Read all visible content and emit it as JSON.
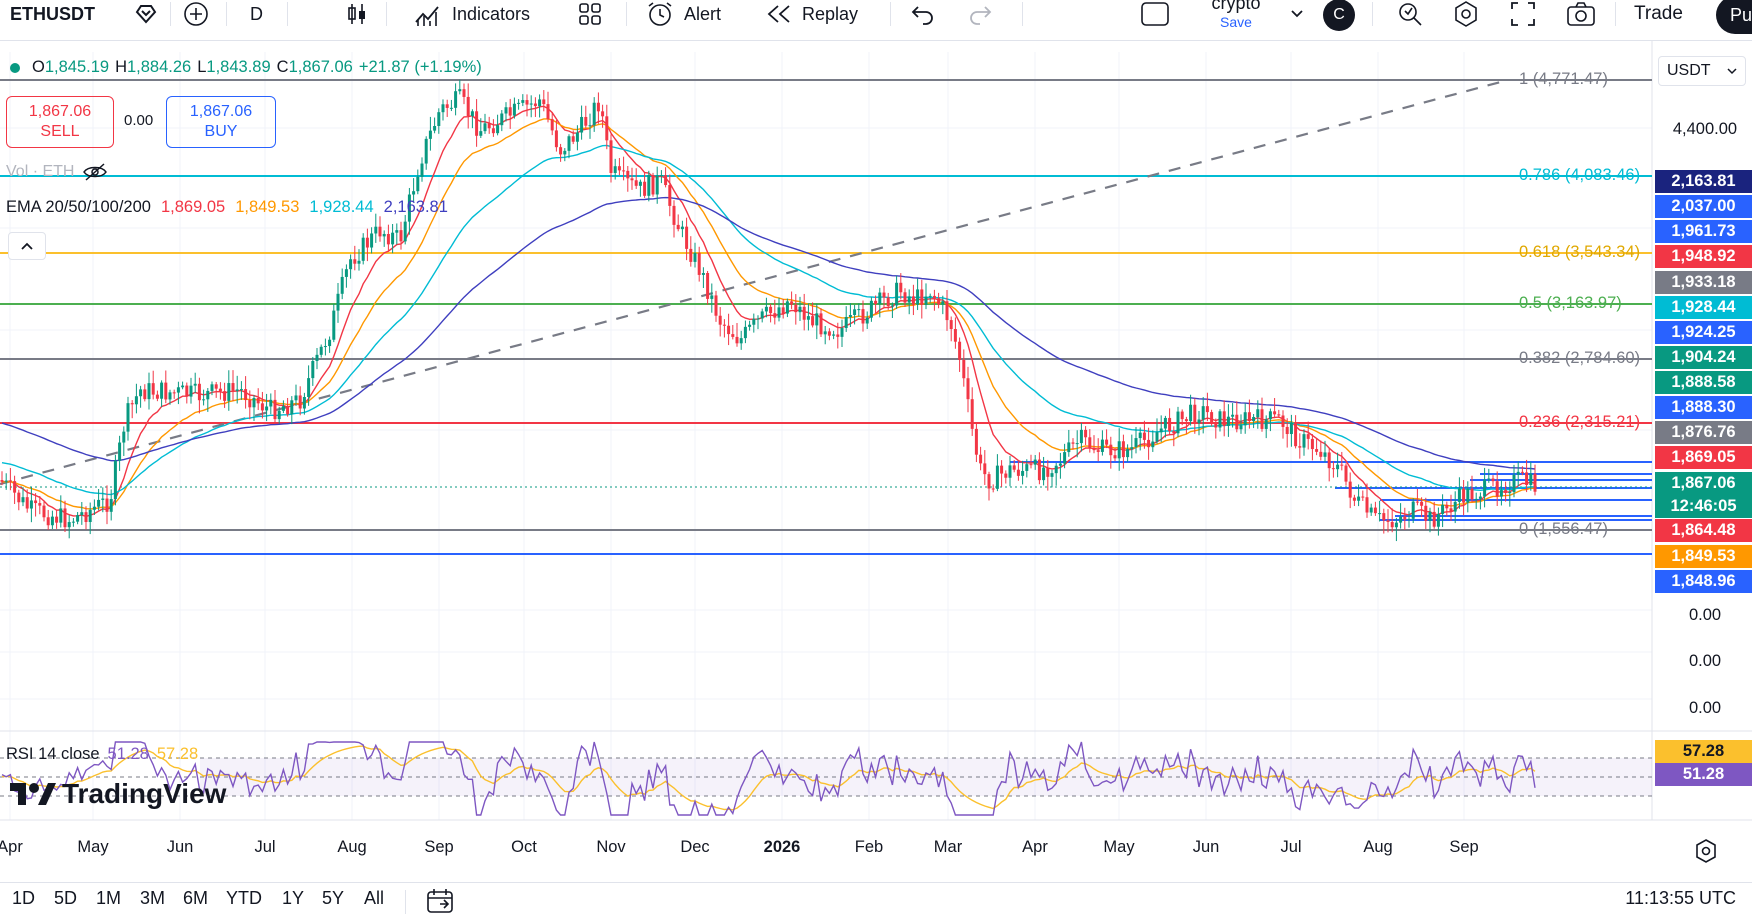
{
  "toolbar": {
    "symbol": "ETHUSDT",
    "interval": "D",
    "indicators_label": "Indicators",
    "alert_label": "Alert",
    "replay_label": "Replay",
    "layout_name": "crypto",
    "layout_sub": "Save",
    "avatar_letter": "C",
    "trade_label": "Trade",
    "publish_label": "Pu"
  },
  "legend": {
    "open_k": "O",
    "open_v": "1,845.19",
    "high_k": "H",
    "high_v": "1,884.26",
    "low_k": "L",
    "low_v": "1,843.89",
    "close_k": "C",
    "close_v": "1,867.06",
    "change": "+21.87 (+1.19%)",
    "sell_price": "1,867.06",
    "sell_label": "SELL",
    "spread": "0.00",
    "buy_price": "1,867.06",
    "buy_label": "BUY",
    "vol_label": "Vol · ETH",
    "ema_label": "EMA 20/50/100/200",
    "ema20": "1,869.05",
    "ema50": "1,849.53",
    "ema100": "1,928.44",
    "ema200": "2,163.81",
    "rsi_label": "RSI 14 close",
    "rsi_value": "51.28",
    "rsi_ma": "57.28"
  },
  "logo_text": "TradingView",
  "price_axis": {
    "currency": "USDT",
    "tick_4400": "4,400.00",
    "zero_1": "0.00",
    "zero_2": "0.00",
    "zero_3": "0.00"
  },
  "price_labels": [
    {
      "text": "2,163.81",
      "color": "#1a237e"
    },
    {
      "text": "2,037.00",
      "color": "#2962ff"
    },
    {
      "text": "1,961.73",
      "color": "#2962ff"
    },
    {
      "text": "1,948.92",
      "color": "#f23645"
    },
    {
      "text": "1,933.18",
      "color": "#787b86"
    },
    {
      "text": "1,928.44",
      "color": "#00bcd4"
    },
    {
      "text": "1,924.25",
      "color": "#2962ff"
    },
    {
      "text": "1,904.24",
      "color": "#089981"
    },
    {
      "text": "1,888.58",
      "color": "#089981"
    },
    {
      "text": "1,888.30",
      "color": "#2962ff"
    },
    {
      "text": "1,876.76",
      "color": "#787b86"
    },
    {
      "text": "1,869.05",
      "color": "#f23645"
    },
    {
      "text": "1,867.06",
      "color": "#089981"
    },
    {
      "text": "12:46:05",
      "color": "#089981"
    },
    {
      "text": "1,864.48",
      "color": "#f23645"
    },
    {
      "text": "1,849.53",
      "color": "#ff9800"
    },
    {
      "text": "1,848.96",
      "color": "#2962ff"
    }
  ],
  "rsi_labels": [
    {
      "text": "57.28",
      "color": "#fbc02d"
    },
    {
      "text": "51.28",
      "color": "#7e57c2"
    }
  ],
  "fib_levels": [
    {
      "text": "1 (4,771.47)",
      "color": "#787b86"
    },
    {
      "text": "0.786 (4,083.46)",
      "color": "#00bcd4"
    },
    {
      "text": "0.618 (3,543.34)",
      "color": "#fbc02d"
    },
    {
      "text": "0.5 (3,163.97)",
      "color": "#4caf50"
    },
    {
      "text": "0.382 (2,784.60)",
      "color": "#787b86"
    },
    {
      "text": "0.236 (2,315.21)",
      "color": "#f23645"
    },
    {
      "text": "0 (1,556.47)",
      "color": "#787b86"
    }
  ],
  "time_axis": [
    "Apr",
    "May",
    "Jun",
    "Jul",
    "Aug",
    "Sep",
    "Oct",
    "Nov",
    "Dec",
    "2026",
    "Feb",
    "Mar",
    "Apr",
    "May",
    "Jun",
    "Jul",
    "Aug",
    "Sep"
  ],
  "ranges": [
    "1D",
    "5D",
    "1M",
    "3M",
    "6M",
    "YTD",
    "1Y",
    "5Y",
    "All"
  ],
  "clock": "11:13:55 UTC",
  "colors": {
    "up": "#089981",
    "down": "#f23645",
    "ema20": "#f23645",
    "ema50": "#ff9800",
    "ema100": "#00bcd4",
    "ema200": "#3f3fbf",
    "rsi": "#7e57c2",
    "rsi_ma": "#fbc02d"
  }
}
